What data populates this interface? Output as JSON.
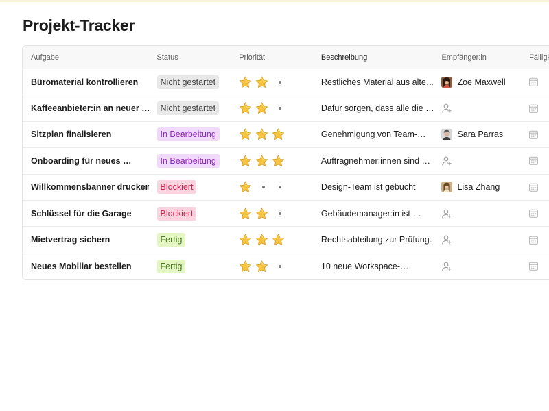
{
  "title": "Projekt-Tracker",
  "columns": {
    "task": "Aufgabe",
    "status": "Status",
    "priority": "Priorität",
    "description": "Beschreibung",
    "assignee": "Empfänger:in",
    "due": "Fälligkeit"
  },
  "status_colors": {
    "gray": "#e8e8e8",
    "purple": "#f0d9fb",
    "pink": "#fbd4df",
    "green": "#e4f6c4"
  },
  "rows": [
    {
      "task": "Büromaterial kontrollieren",
      "status": "Nicht gestartet",
      "priority": 2,
      "description": "Restliches Material aus alte…",
      "assignee": "Zoe Maxwell",
      "assignee_icon": "avatar-photo"
    },
    {
      "task": "Kaffeeanbieter:in an neuer …",
      "status": "Nicht gestartet",
      "priority": 2,
      "description": "Dafür sorgen, dass alle die …",
      "assignee": "",
      "assignee_icon": "unassigned-person-icon"
    },
    {
      "task": "Sitzplan finalisieren",
      "status": "In Bearbeitung",
      "priority": 3,
      "description": "Genehmigung von Team-…",
      "assignee": "Sara Parras",
      "assignee_icon": "avatar-photo"
    },
    {
      "task": "Onboarding für neues …",
      "status": "In Bearbeitung",
      "priority": 3,
      "description": "Auftragnehmer:innen sind …",
      "assignee": "",
      "assignee_icon": "unassigned-person-icon"
    },
    {
      "task": "Willkommensbanner drucken",
      "status": "Blockiert",
      "priority": 1,
      "description": "Design-Team ist gebucht",
      "assignee": "Lisa Zhang",
      "assignee_icon": "avatar-photo"
    },
    {
      "task": "Schlüssel für die Garage",
      "status": "Blockiert",
      "priority": 2,
      "description": "Gebäudemanager:in ist …",
      "assignee": "",
      "assignee_icon": "unassigned-person-icon"
    },
    {
      "task": "Mietvertrag sichern",
      "status": "Fertig",
      "priority": 3,
      "description": "Rechtsabteilung zur Prüfung…",
      "assignee": "",
      "assignee_icon": "unassigned-person-icon"
    },
    {
      "task": "Neues Mobiliar bestellen",
      "status": "Fertig",
      "priority": 2,
      "description": "10 neue Workspace-…",
      "assignee": "",
      "assignee_icon": "unassigned-person-icon"
    }
  ],
  "priority_max": 3,
  "icons": {
    "star": "star-icon",
    "empty": "dot-icon",
    "calendar": "calendar-icon",
    "unassigned": "add-person-icon"
  }
}
